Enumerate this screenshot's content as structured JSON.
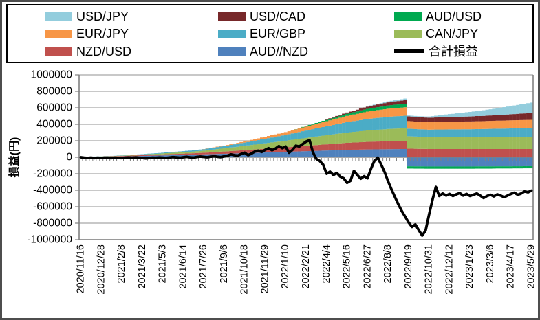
{
  "legend": {
    "items": [
      {
        "label": "USD/JPY",
        "color": "#93cddd",
        "marker": "box"
      },
      {
        "label": "USD/CAD",
        "color": "#77282a",
        "marker": "box"
      },
      {
        "label": "AUD/USD",
        "color": "#00a950",
        "marker": "box"
      },
      {
        "label": "EUR/JPY",
        "color": "#f79646",
        "marker": "box"
      },
      {
        "label": "EUR/GBP",
        "color": "#4bacc6",
        "marker": "box"
      },
      {
        "label": "CAN/JPY",
        "color": "#9bbb59",
        "marker": "box"
      },
      {
        "label": "NZD/USD",
        "color": "#c0504d",
        "marker": "box"
      },
      {
        "label": "AUD//NZD",
        "color": "#4f81bd",
        "marker": "box"
      },
      {
        "label": "合計損益",
        "color": "#000000",
        "marker": "line"
      }
    ]
  },
  "chart_data": {
    "type": "bar",
    "subtype": "stacked-weekly-bars-with-total-line",
    "title": "",
    "xlabel": "",
    "ylabel": "損益(円)",
    "y_min": -1000000,
    "y_max": 1000000,
    "y_step": 200000,
    "y_ticks": [
      "1000000",
      "800000",
      "600000",
      "400000",
      "200000",
      "0",
      "-200000",
      "-400000",
      "-600000",
      "-800000",
      "-1000000"
    ],
    "grid": true,
    "legend_position": "top",
    "value_multiplier": 1000,
    "value_unit": "thousand JPY",
    "n_points": 133,
    "x_label_every": 6,
    "x_labels": [
      "2020/11/16",
      "2020/12/28",
      "2021/2/8",
      "2021/3/22",
      "2021/5/3",
      "2021/6/14",
      "2021/7/26",
      "2021/9/6",
      "2021/10/18",
      "2021/11/29",
      "2022/1/10",
      "2022/2/21",
      "2022/4/4",
      "2022/5/16",
      "2022/6/27",
      "2022/8/8",
      "2022/9/19",
      "2022/10/31",
      "2022/12/12",
      "2023/1/23",
      "2023/3/6",
      "2023/4/17",
      "2023/5/29"
    ],
    "series": [
      {
        "name": "AUD//NZD",
        "color": "#4f81bd",
        "values": [
          2,
          2,
          3,
          3,
          4,
          4,
          5,
          6,
          7,
          7,
          8,
          9,
          10,
          11,
          12,
          13,
          14,
          15,
          16,
          17,
          18,
          19,
          20,
          21,
          22,
          23,
          24,
          25,
          26,
          27,
          28,
          29,
          30,
          31,
          33,
          34,
          35,
          36,
          37,
          38,
          40,
          41,
          42,
          43,
          45,
          46,
          47,
          49,
          50,
          51,
          53,
          54,
          55,
          57,
          58,
          59,
          61,
          62,
          63,
          65,
          66,
          67,
          69,
          70,
          71,
          73,
          74,
          75,
          77,
          78,
          79,
          81,
          82,
          83,
          85,
          86,
          87,
          89,
          90,
          91,
          92,
          92,
          93,
          94,
          95,
          95,
          96,
          96,
          97,
          97,
          98,
          98,
          99,
          99,
          100,
          100,
          -110,
          -110,
          -111,
          -111,
          -111,
          -112,
          -112,
          -112,
          -112,
          -112,
          -112,
          -112,
          -112,
          -112,
          -112,
          -112,
          -112,
          -112,
          -112,
          -112,
          -111,
          -111,
          -111,
          -111,
          -111,
          -111,
          -110,
          -110,
          -110,
          -110,
          -110,
          -109,
          -109,
          -109,
          -108,
          -108,
          -108
        ]
      },
      {
        "name": "NZD/USD",
        "color": "#c0504d",
        "values": [
          1,
          1,
          2,
          2,
          2,
          3,
          3,
          4,
          4,
          5,
          5,
          6,
          6,
          7,
          7,
          8,
          8,
          9,
          9,
          10,
          11,
          11,
          12,
          12,
          13,
          14,
          14,
          15,
          15,
          16,
          16,
          17,
          17,
          18,
          19,
          19,
          20,
          21,
          23,
          24,
          25,
          27,
          28,
          29,
          31,
          32,
          33,
          35,
          36,
          38,
          39,
          41,
          42,
          44,
          45,
          47,
          48,
          50,
          52,
          53,
          55,
          57,
          58,
          60,
          62,
          63,
          65,
          67,
          68,
          70,
          72,
          73,
          75,
          77,
          78,
          80,
          82,
          83,
          85,
          86,
          87,
          88,
          90,
          91,
          92,
          93,
          94,
          95,
          95,
          96,
          97,
          98,
          98,
          99,
          99,
          100,
          105,
          104,
          103,
          102,
          102,
          101,
          100,
          100,
          100,
          100,
          100,
          100,
          100,
          100,
          100,
          100,
          100,
          100,
          100,
          100,
          100,
          100,
          100,
          100,
          100,
          100,
          100,
          100,
          100,
          100,
          100,
          100,
          100,
          100,
          100,
          100,
          100
        ]
      },
      {
        "name": "CAN/JPY",
        "color": "#9bbb59",
        "values": [
          1,
          1,
          1,
          1,
          2,
          2,
          2,
          2,
          3,
          3,
          3,
          4,
          4,
          4,
          5,
          5,
          6,
          6,
          7,
          8,
          9,
          9,
          10,
          11,
          12,
          13,
          14,
          15,
          16,
          17,
          18,
          19,
          20,
          21,
          22,
          24,
          25,
          27,
          29,
          31,
          34,
          36,
          38,
          40,
          43,
          45,
          47,
          50,
          52,
          54,
          57,
          59,
          61,
          64,
          66,
          68,
          71,
          73,
          75,
          78,
          80,
          83,
          85,
          88,
          90,
          93,
          95,
          98,
          100,
          103,
          105,
          108,
          110,
          113,
          115,
          118,
          120,
          123,
          125,
          127,
          129,
          132,
          134,
          136,
          138,
          140,
          141,
          143,
          145,
          146,
          148,
          149,
          150,
          151,
          151,
          152,
          150,
          149,
          148,
          147,
          147,
          146,
          145,
          145,
          145,
          145,
          144,
          144,
          144,
          144,
          143,
          143,
          143,
          143,
          142,
          142,
          142,
          142,
          142,
          142,
          142,
          142,
          142,
          142,
          142,
          142,
          142,
          142,
          142,
          142,
          142,
          142,
          142
        ]
      },
      {
        "name": "EUR/GBP",
        "color": "#4bacc6",
        "values": [
          0,
          0,
          0,
          1,
          1,
          1,
          1,
          1,
          2,
          2,
          2,
          3,
          3,
          3,
          4,
          4,
          4,
          5,
          5,
          6,
          6,
          7,
          7,
          8,
          8,
          9,
          9,
          10,
          11,
          11,
          12,
          13,
          14,
          15,
          16,
          17,
          18,
          20,
          21,
          23,
          25,
          26,
          28,
          30,
          32,
          34,
          36,
          38,
          40,
          43,
          45,
          48,
          50,
          53,
          55,
          58,
          60,
          63,
          65,
          68,
          70,
          73,
          77,
          80,
          83,
          87,
          90,
          93,
          96,
          99,
          102,
          105,
          108,
          111,
          114,
          117,
          120,
          123,
          126,
          128,
          131,
          133,
          135,
          138,
          140,
          141,
          143,
          144,
          145,
          147,
          148,
          149,
          150,
          150,
          151,
          152,
          92,
          92,
          91,
          91,
          90,
          90,
          90,
          91,
          92,
          92,
          93,
          94,
          95,
          95,
          96,
          96,
          97,
          97,
          98,
          99,
          100,
          100,
          101,
          102,
          103,
          104,
          105,
          105,
          106,
          107,
          108,
          109,
          109,
          110,
          111,
          111,
          112
        ]
      },
      {
        "name": "EUR/JPY",
        "color": "#f79646",
        "values": [
          0,
          0,
          0,
          0,
          0,
          0,
          0,
          0,
          0,
          0,
          0,
          0,
          0,
          0,
          0,
          0,
          0,
          0,
          0,
          0,
          0,
          0,
          0,
          0,
          0,
          0,
          0,
          0,
          0,
          0,
          0,
          0,
          0,
          0,
          0,
          0,
          2,
          3,
          3,
          4,
          5,
          5,
          6,
          7,
          9,
          10,
          11,
          13,
          14,
          16,
          17,
          19,
          21,
          22,
          24,
          26,
          27,
          29,
          31,
          32,
          34,
          36,
          39,
          41,
          43,
          46,
          48,
          50,
          53,
          55,
          57,
          60,
          62,
          64,
          67,
          69,
          71,
          74,
          76,
          78,
          80,
          82,
          85,
          87,
          89,
          91,
          92,
          94,
          95,
          97,
          98,
          99,
          100,
          101,
          102,
          103,
          92,
          92,
          91,
          91,
          90,
          90,
          90,
          90,
          90,
          91,
          91,
          92,
          92,
          92,
          93,
          93,
          93,
          94,
          94,
          94,
          95,
          95,
          95,
          96,
          96,
          96,
          97,
          97,
          97,
          98,
          98,
          98,
          99,
          99,
          99,
          100,
          100
        ]
      },
      {
        "name": "AUD/USD",
        "color": "#00a950",
        "values": [
          0,
          0,
          0,
          0,
          0,
          0,
          0,
          0,
          0,
          0,
          0,
          0,
          0,
          0,
          0,
          0,
          0,
          0,
          0,
          0,
          0,
          0,
          0,
          0,
          0,
          0,
          0,
          0,
          0,
          0,
          0,
          0,
          0,
          0,
          0,
          0,
          0,
          0,
          0,
          0,
          0,
          0,
          0,
          0,
          0,
          0,
          0,
          0,
          0,
          0,
          0,
          0,
          0,
          0,
          0,
          0,
          0,
          0,
          0,
          0,
          0,
          0,
          0,
          2,
          4,
          6,
          8,
          9,
          11,
          12,
          13,
          15,
          16,
          18,
          19,
          21,
          23,
          24,
          26,
          27,
          28,
          29,
          31,
          32,
          33,
          34,
          35,
          36,
          37,
          38,
          39,
          40,
          41,
          41,
          42,
          43,
          -27,
          -27,
          -27,
          -27,
          -27,
          -27,
          -27,
          -27,
          -27,
          -27,
          -27,
          -27,
          -27,
          -27,
          -27,
          -27,
          -27,
          -27,
          -27,
          -27,
          -27,
          -27,
          -27,
          -27,
          -27,
          -26,
          -26,
          -26,
          -26,
          -26,
          -26,
          -26,
          -26,
          -26,
          -26,
          -26,
          -26
        ]
      },
      {
        "name": "USD/CAD",
        "color": "#77282a",
        "values": [
          0,
          0,
          0,
          0,
          0,
          0,
          0,
          0,
          0,
          0,
          0,
          0,
          0,
          0,
          0,
          0,
          0,
          0,
          0,
          0,
          0,
          0,
          0,
          0,
          0,
          0,
          0,
          0,
          0,
          0,
          0,
          0,
          0,
          0,
          0,
          0,
          0,
          0,
          0,
          0,
          0,
          0,
          0,
          0,
          0,
          0,
          0,
          0,
          0,
          0,
          0,
          0,
          0,
          0,
          0,
          0,
          0,
          0,
          0,
          0,
          0,
          0,
          0,
          0,
          0,
          0,
          0,
          0,
          0,
          0,
          0,
          0,
          5,
          7,
          8,
          10,
          12,
          13,
          15,
          17,
          19,
          21,
          23,
          25,
          27,
          29,
          31,
          33,
          34,
          36,
          38,
          39,
          40,
          41,
          42,
          44,
          58,
          57,
          57,
          56,
          56,
          55,
          55,
          55,
          56,
          56,
          57,
          57,
          58,
          58,
          59,
          59,
          60,
          60,
          61,
          62,
          63,
          63,
          64,
          65,
          66,
          67,
          68,
          70,
          71,
          72,
          74,
          75,
          77,
          79,
          80,
          82,
          84
        ]
      },
      {
        "name": "USD/JPY",
        "color": "#93cddd",
        "values": [
          0,
          0,
          0,
          0,
          0,
          0,
          0,
          0,
          0,
          0,
          0,
          0,
          0,
          0,
          0,
          0,
          0,
          0,
          0,
          0,
          0,
          0,
          0,
          0,
          0,
          0,
          0,
          0,
          0,
          0,
          0,
          0,
          0,
          0,
          0,
          0,
          0,
          0,
          0,
          0,
          0,
          0,
          0,
          0,
          0,
          0,
          0,
          0,
          0,
          0,
          0,
          0,
          0,
          0,
          0,
          0,
          0,
          0,
          0,
          0,
          0,
          0,
          0,
          0,
          0,
          0,
          0,
          0,
          0,
          0,
          0,
          0,
          0,
          0,
          0,
          0,
          0,
          0,
          0,
          0,
          0,
          0,
          0,
          0,
          5,
          6,
          7,
          8,
          9,
          11,
          12,
          13,
          14,
          15,
          17,
          18,
          10,
          10,
          11,
          11,
          12,
          13,
          15,
          18,
          21,
          25,
          28,
          32,
          35,
          38,
          42,
          45,
          48,
          52,
          55,
          58,
          62,
          65,
          68,
          72,
          75,
          79,
          83,
          88,
          92,
          96,
          100,
          104,
          108,
          113,
          117,
          121,
          125
        ]
      }
    ],
    "line_series": {
      "name": "合計損益",
      "color": "#000000",
      "values": [
        0,
        -5,
        -8,
        -4,
        -10,
        -6,
        -9,
        -4,
        -7,
        -11,
        -5,
        -8,
        -10,
        -5,
        -3,
        -7,
        -2,
        -5,
        -8,
        -13,
        -9,
        -5,
        -7,
        -3,
        -5,
        -8,
        -3,
        2,
        -2,
        -6,
        0,
        5,
        -1,
        -4,
        3,
        8,
        4,
        0,
        6,
        12,
        6,
        2,
        10,
        20,
        35,
        25,
        20,
        40,
        55,
        25,
        45,
        70,
        80,
        65,
        90,
        110,
        85,
        105,
        135,
        110,
        130,
        55,
        90,
        140,
        130,
        160,
        190,
        207,
        60,
        -20,
        -45,
        -90,
        -200,
        -175,
        -215,
        -190,
        -235,
        -255,
        -310,
        -285,
        -165,
        -215,
        -260,
        -230,
        -255,
        -140,
        -45,
        -5,
        -90,
        -180,
        -290,
        -390,
        -480,
        -570,
        -650,
        -720,
        -790,
        -845,
        -815,
        -885,
        -950,
        -890,
        -700,
        -520,
        -360,
        -470,
        -440,
        -465,
        -445,
        -470,
        -450,
        -435,
        -465,
        -445,
        -470,
        -455,
        -440,
        -465,
        -495,
        -470,
        -455,
        -475,
        -450,
        -465,
        -485,
        -465,
        -445,
        -430,
        -455,
        -440,
        -415,
        -425,
        -405
      ]
    }
  }
}
